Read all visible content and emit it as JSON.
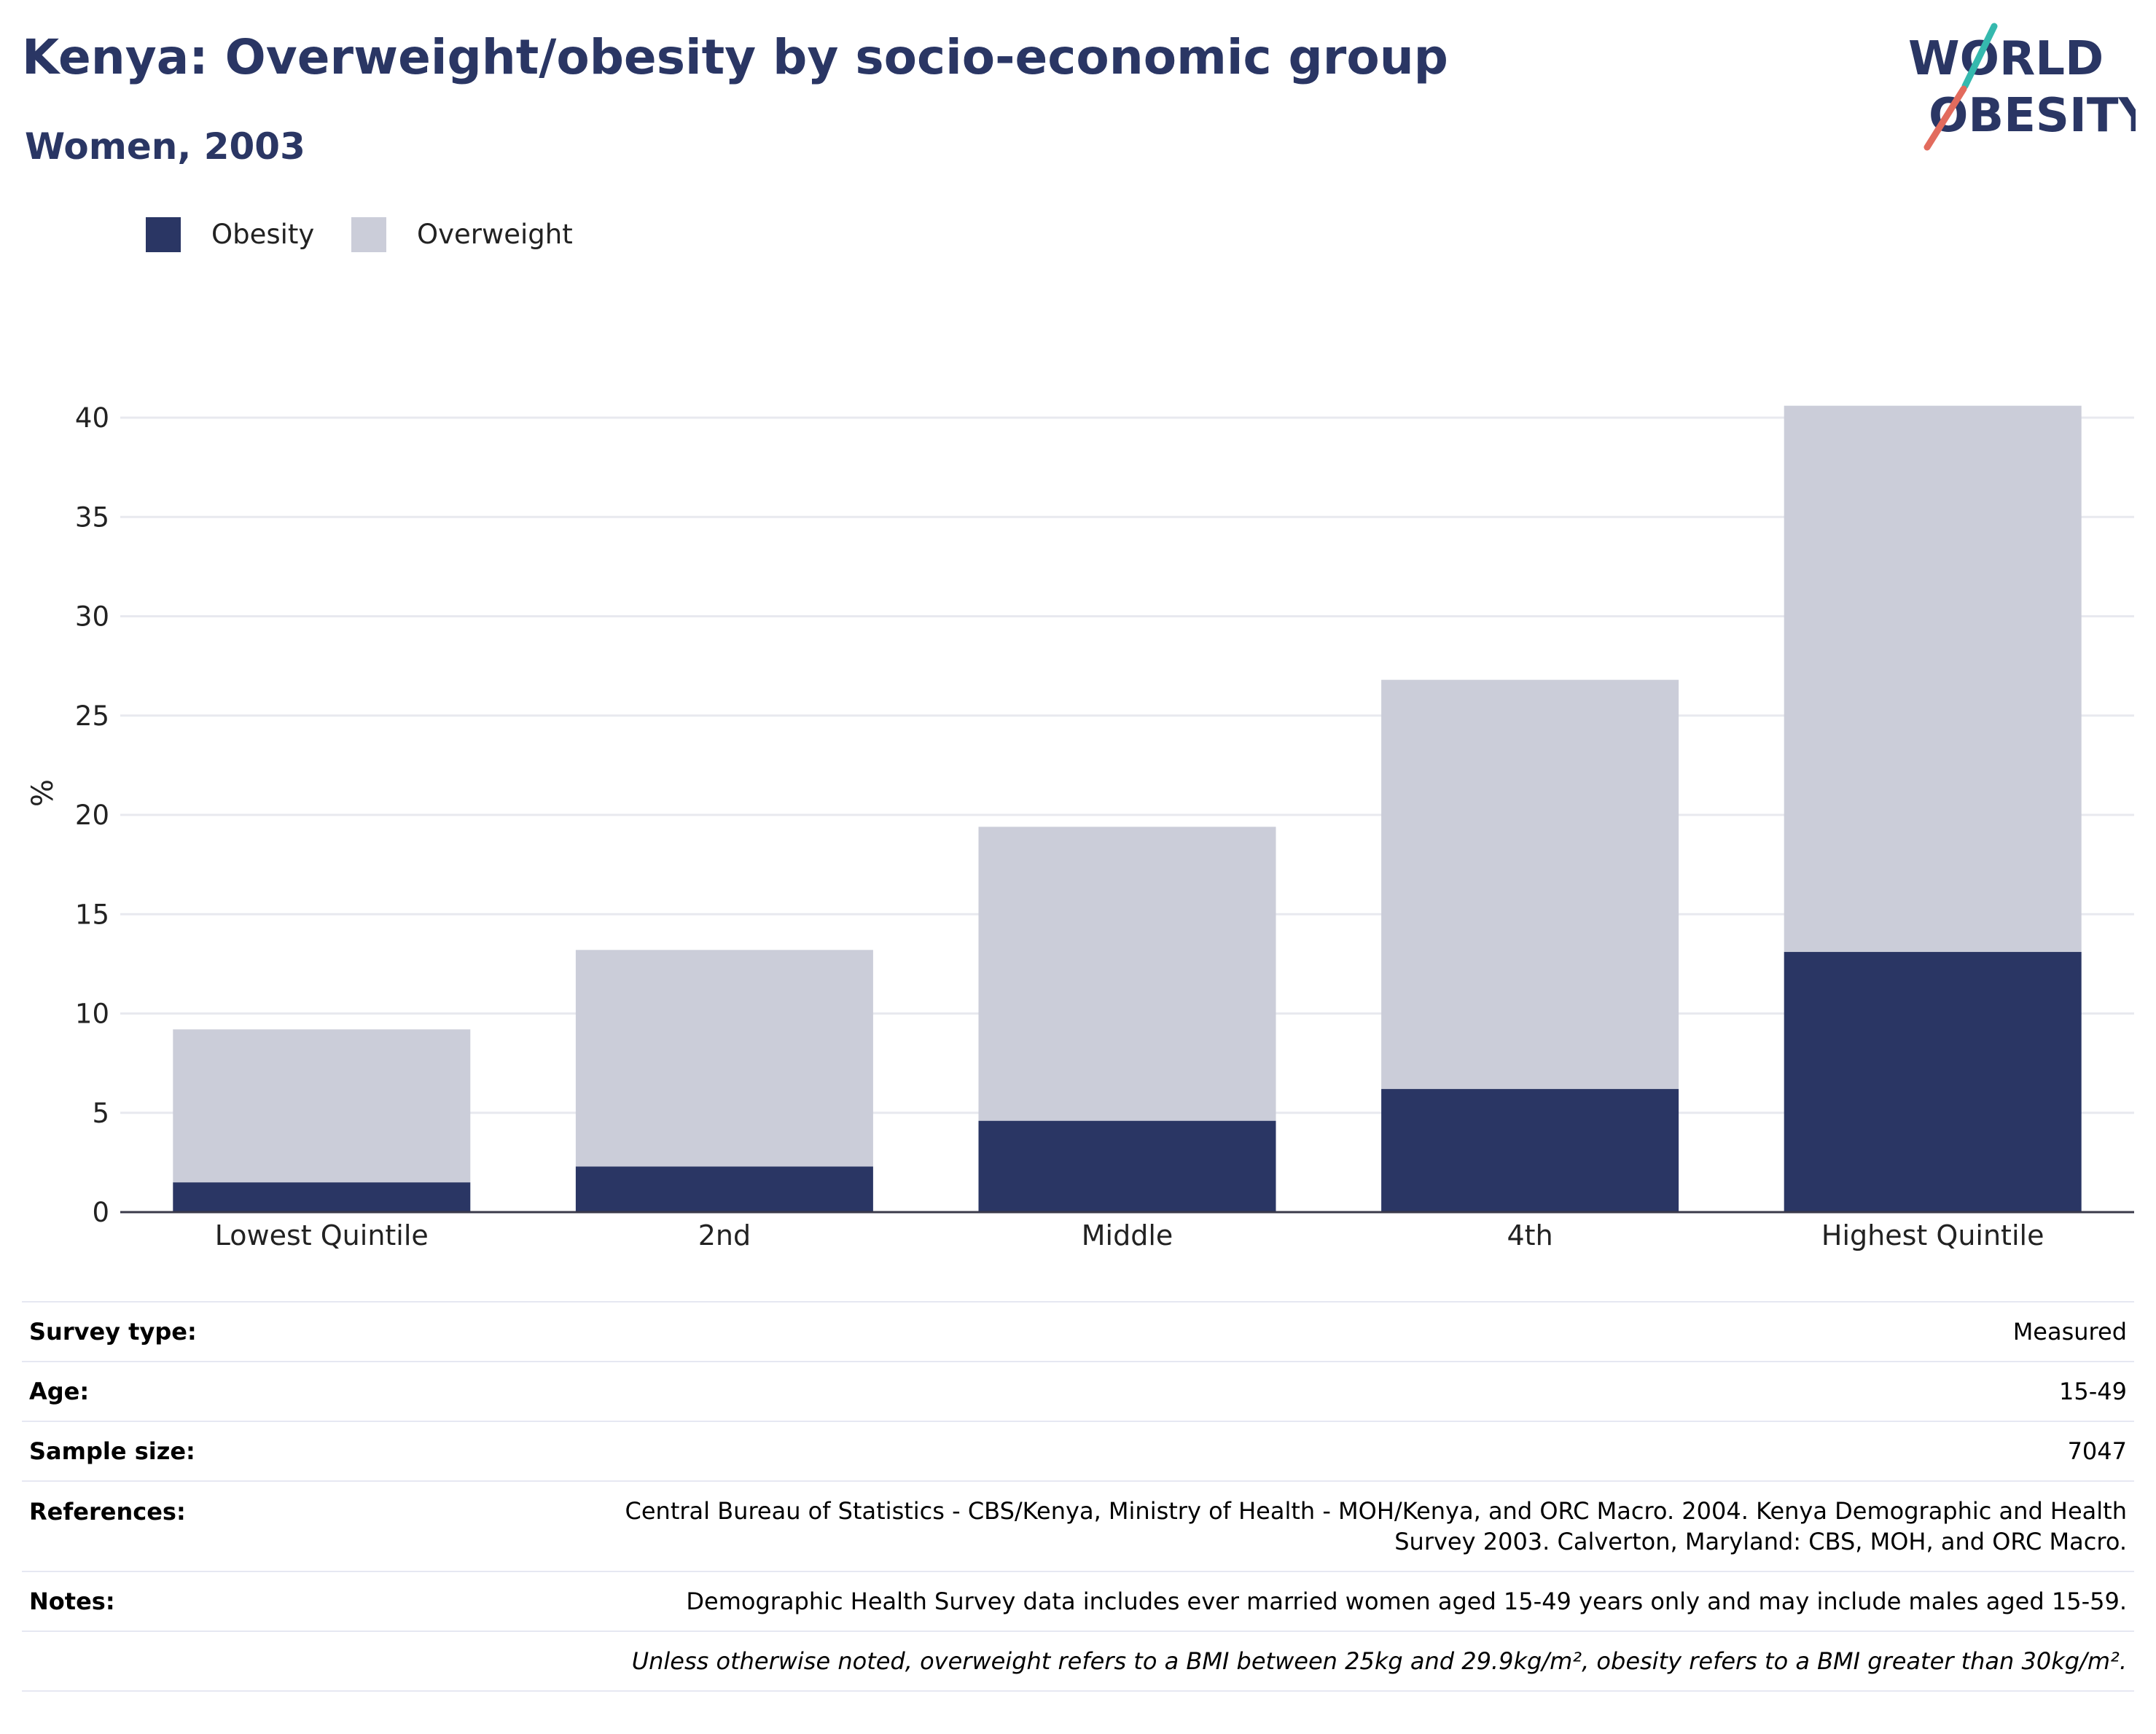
{
  "header": {
    "title": "Kenya: Overweight/obesity by socio-economic group",
    "subtitle": "Women, 2003"
  },
  "logo": {
    "line1": "WORLD",
    "line2": "OBESITY"
  },
  "colors": {
    "obesity": "#2a3664",
    "overweight": "#cbcdd9",
    "title": "#2a3664",
    "logo_teal": "#35b9ae",
    "logo_coral": "#e26b5d"
  },
  "legend": [
    {
      "label": "Obesity",
      "color": "#2a3664"
    },
    {
      "label": "Overweight",
      "color": "#cbcdd9"
    }
  ],
  "chart_data": {
    "type": "bar",
    "stacked": true,
    "categories": [
      "Lowest Quintile",
      "2nd",
      "Middle",
      "4th",
      "Highest Quintile"
    ],
    "series": [
      {
        "name": "Obesity",
        "values": [
          1.5,
          2.3,
          4.6,
          6.2,
          13.1
        ]
      },
      {
        "name": "Overweight",
        "values": [
          7.7,
          10.9,
          14.8,
          20.6,
          27.5
        ]
      }
    ],
    "ylabel": "%",
    "ylim": [
      0,
      42
    ],
    "yticks": [
      0,
      5,
      10,
      15,
      20,
      25,
      30,
      35,
      40
    ],
    "grid": true,
    "legend_position": "top-left"
  },
  "info": [
    {
      "label": "Survey type:",
      "value": "Measured"
    },
    {
      "label": "Age:",
      "value": "15-49"
    },
    {
      "label": "Sample size:",
      "value": "7047"
    },
    {
      "label": "References:",
      "value_lines": [
        "Central Bureau of Statistics - CBS/Kenya, Ministry of Health - MOH/Kenya, and ORC Macro. 2004. Kenya Demographic and Health",
        "Survey 2003. Calverton, Maryland: CBS, MOH, and ORC Macro."
      ]
    },
    {
      "label": "Notes:",
      "value": "Demographic Health Survey data includes ever married women aged 15-49 years only and may include males aged 15-59."
    },
    {
      "label": "",
      "value": "Unless otherwise noted, overweight refers to a BMI between 25kg and 29.9kg/m², obesity refers to a BMI greater than 30kg/m²."
    }
  ]
}
